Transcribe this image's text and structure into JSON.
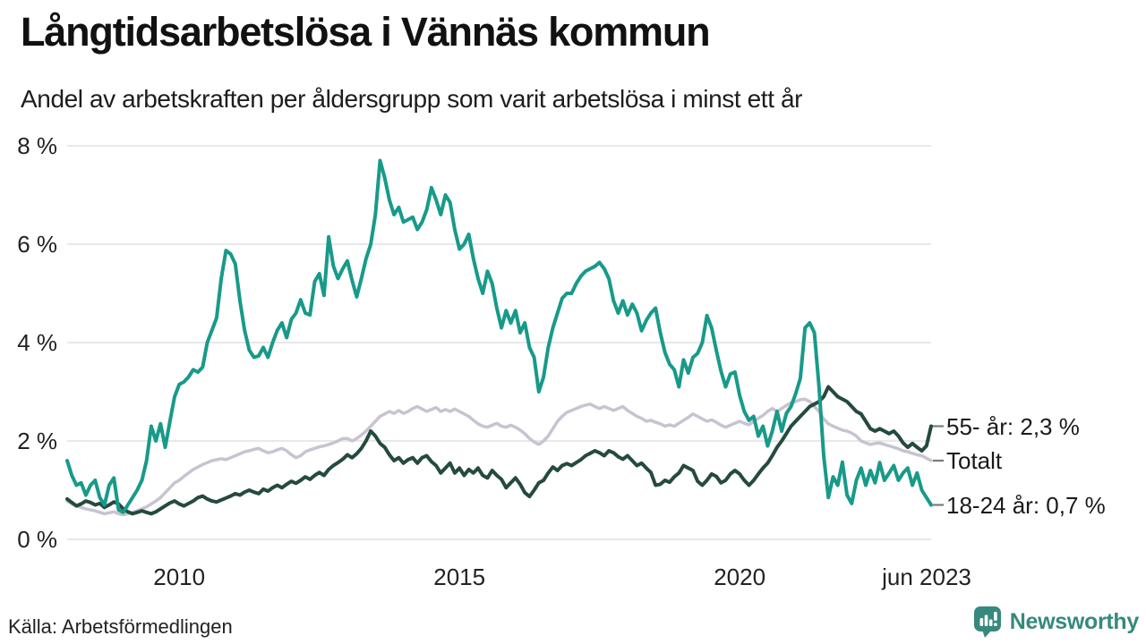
{
  "header": {
    "title": "Långtidsarbetslösa i Vännäs kommun",
    "subtitle": "Andel av arbetskraften per åldersgrupp som varit arbetslösa i minst ett år"
  },
  "chart_data": {
    "type": "line",
    "title": "Långtidsarbetslösa i Vännäs kommun",
    "subtitle": "Andel av arbetskraften per åldersgrupp som varit arbetslösa i minst ett år",
    "x_domain": [
      2008.0,
      2023.4167
    ],
    "x_step": "monthly",
    "ylim": [
      0,
      8
    ],
    "grid": "horizontal",
    "gridline_color": "#e1e1e1",
    "y_ticks": [
      {
        "value": 8,
        "label": "8 %"
      },
      {
        "value": 6,
        "label": "6 %"
      },
      {
        "value": 4,
        "label": "4 %"
      },
      {
        "value": 2,
        "label": "2 %"
      },
      {
        "value": 0,
        "label": "0 %"
      }
    ],
    "x_ticks": [
      {
        "value": 2010.0,
        "label": "2010"
      },
      {
        "value": 2015.0,
        "label": "2015"
      },
      {
        "value": 2020.0,
        "label": "2020"
      },
      {
        "value": 2023.4167,
        "label": "jun 2023"
      }
    ],
    "legend_position": "right-end-labels",
    "series": [
      {
        "name": "Totalt",
        "end_label": "Totalt",
        "end_value": 1.6,
        "color": "#c6c4d2",
        "values": [
          0.78,
          0.72,
          0.68,
          0.65,
          0.62,
          0.6,
          0.58,
          0.55,
          0.52,
          0.54,
          0.56,
          0.52,
          0.5,
          0.52,
          0.55,
          0.58,
          0.62,
          0.66,
          0.72,
          0.78,
          0.85,
          0.95,
          1.05,
          1.15,
          1.2,
          1.28,
          1.35,
          1.42,
          1.47,
          1.52,
          1.56,
          1.6,
          1.62,
          1.64,
          1.62,
          1.66,
          1.7,
          1.74,
          1.78,
          1.8,
          1.83,
          1.85,
          1.8,
          1.76,
          1.78,
          1.82,
          1.85,
          1.8,
          1.72,
          1.66,
          1.7,
          1.78,
          1.82,
          1.85,
          1.88,
          1.9,
          1.93,
          1.96,
          2.0,
          2.05,
          2.05,
          2.0,
          2.05,
          2.12,
          2.2,
          2.3,
          2.4,
          2.5,
          2.55,
          2.6,
          2.56,
          2.62,
          2.56,
          2.6,
          2.66,
          2.7,
          2.65,
          2.6,
          2.64,
          2.68,
          2.6,
          2.64,
          2.6,
          2.65,
          2.6,
          2.55,
          2.5,
          2.42,
          2.35,
          2.3,
          2.28,
          2.32,
          2.36,
          2.3,
          2.28,
          2.32,
          2.28,
          2.22,
          2.15,
          2.05,
          1.98,
          1.93,
          2.0,
          2.1,
          2.25,
          2.4,
          2.5,
          2.58,
          2.62,
          2.66,
          2.7,
          2.73,
          2.75,
          2.7,
          2.66,
          2.7,
          2.66,
          2.62,
          2.66,
          2.7,
          2.62,
          2.56,
          2.5,
          2.46,
          2.4,
          2.42,
          2.38,
          2.35,
          2.3,
          2.33,
          2.3,
          2.36,
          2.42,
          2.48,
          2.55,
          2.5,
          2.45,
          2.4,
          2.43,
          2.38,
          2.32,
          2.28,
          2.32,
          2.36,
          2.4,
          2.36,
          2.33,
          2.4,
          2.46,
          2.52,
          2.6,
          2.66,
          2.6,
          2.66,
          2.72,
          2.78,
          2.8,
          2.84,
          2.85,
          2.8,
          2.7,
          2.6,
          2.45,
          2.35,
          2.3,
          2.26,
          2.22,
          2.2,
          2.16,
          2.1,
          2.0,
          1.96,
          1.93,
          1.95,
          1.96,
          1.93,
          1.9,
          1.87,
          1.84,
          1.8,
          1.78,
          1.75,
          1.72,
          1.7,
          1.65,
          1.6
        ]
      },
      {
        "name": "55- år",
        "end_label": "55- år: 2,3 %",
        "end_value": 2.3,
        "color": "#254a3e",
        "values": [
          0.82,
          0.75,
          0.68,
          0.72,
          0.78,
          0.75,
          0.7,
          0.73,
          0.65,
          0.7,
          0.76,
          0.72,
          0.62,
          0.56,
          0.52,
          0.55,
          0.58,
          0.55,
          0.52,
          0.56,
          0.62,
          0.68,
          0.74,
          0.78,
          0.72,
          0.68,
          0.73,
          0.78,
          0.85,
          0.88,
          0.82,
          0.78,
          0.76,
          0.8,
          0.84,
          0.88,
          0.93,
          0.9,
          0.96,
          1.0,
          0.96,
          0.93,
          1.02,
          0.98,
          1.05,
          1.1,
          1.05,
          1.12,
          1.18,
          1.14,
          1.2,
          1.27,
          1.22,
          1.3,
          1.36,
          1.3,
          1.42,
          1.5,
          1.56,
          1.63,
          1.72,
          1.66,
          1.74,
          1.85,
          2.0,
          2.2,
          2.1,
          1.95,
          1.87,
          1.72,
          1.6,
          1.66,
          1.55,
          1.62,
          1.66,
          1.55,
          1.66,
          1.7,
          1.58,
          1.5,
          1.35,
          1.45,
          1.55,
          1.35,
          1.45,
          1.3,
          1.42,
          1.35,
          1.45,
          1.3,
          1.25,
          1.4,
          1.3,
          1.22,
          1.05,
          1.15,
          1.25,
          1.12,
          0.95,
          0.87,
          1.0,
          1.15,
          1.2,
          1.35,
          1.47,
          1.4,
          1.5,
          1.54,
          1.5,
          1.56,
          1.62,
          1.7,
          1.75,
          1.8,
          1.76,
          1.7,
          1.8,
          1.76,
          1.68,
          1.63,
          1.7,
          1.6,
          1.5,
          1.55,
          1.45,
          1.36,
          1.1,
          1.12,
          1.2,
          1.16,
          1.27,
          1.35,
          1.5,
          1.45,
          1.4,
          1.18,
          1.1,
          1.2,
          1.33,
          1.28,
          1.15,
          1.2,
          1.33,
          1.4,
          1.33,
          1.2,
          1.1,
          1.2,
          1.33,
          1.45,
          1.55,
          1.7,
          1.87,
          2.0,
          2.15,
          2.3,
          2.4,
          2.5,
          2.6,
          2.7,
          2.75,
          2.8,
          2.9,
          3.1,
          3.0,
          2.9,
          2.85,
          2.8,
          2.7,
          2.6,
          2.55,
          2.4,
          2.25,
          2.2,
          2.25,
          2.2,
          2.15,
          2.2,
          2.1,
          1.96,
          1.87,
          1.95,
          1.87,
          1.8,
          1.9,
          2.3
        ]
      },
      {
        "name": "18-24 år",
        "end_label": "18-24 år: 0,7 %",
        "end_value": 0.7,
        "color": "#189a8a",
        "values": [
          1.6,
          1.3,
          1.1,
          1.15,
          0.9,
          1.1,
          1.2,
          0.85,
          0.7,
          1.1,
          1.25,
          0.6,
          0.55,
          0.7,
          0.85,
          1.0,
          1.2,
          1.6,
          2.3,
          2.0,
          2.35,
          1.87,
          2.4,
          2.9,
          3.15,
          3.2,
          3.3,
          3.45,
          3.4,
          3.5,
          4.0,
          4.25,
          4.5,
          5.3,
          5.87,
          5.8,
          5.6,
          4.85,
          4.25,
          3.85,
          3.7,
          3.73,
          3.9,
          3.7,
          4.0,
          4.25,
          4.4,
          4.1,
          4.47,
          4.6,
          4.87,
          4.6,
          4.56,
          5.24,
          5.4,
          4.96,
          6.15,
          5.56,
          5.3,
          5.5,
          5.66,
          5.27,
          4.93,
          5.3,
          5.7,
          6.0,
          6.6,
          7.7,
          7.35,
          6.9,
          6.6,
          6.75,
          6.45,
          6.5,
          6.55,
          6.3,
          6.45,
          6.7,
          7.15,
          6.9,
          6.6,
          7.0,
          6.85,
          6.3,
          5.9,
          6.0,
          6.2,
          5.7,
          5.3,
          5.0,
          5.45,
          5.2,
          4.7,
          4.3,
          4.65,
          4.4,
          4.65,
          4.2,
          4.4,
          3.9,
          3.7,
          3.0,
          3.3,
          3.9,
          4.3,
          4.6,
          4.9,
          5.0,
          5.0,
          5.2,
          5.35,
          5.45,
          5.5,
          5.55,
          5.63,
          5.5,
          5.3,
          4.85,
          4.6,
          4.85,
          4.56,
          4.78,
          4.6,
          4.24,
          4.45,
          4.6,
          4.7,
          4.2,
          3.8,
          3.56,
          3.45,
          3.1,
          3.65,
          3.38,
          3.7,
          3.78,
          4.0,
          4.55,
          4.3,
          3.84,
          3.42,
          3.1,
          3.36,
          3.4,
          2.93,
          2.6,
          2.42,
          2.5,
          2.1,
          2.3,
          1.9,
          2.2,
          2.6,
          2.2,
          2.56,
          2.7,
          2.96,
          3.27,
          4.3,
          4.4,
          4.2,
          3.1,
          1.7,
          0.85,
          1.27,
          1.1,
          1.57,
          0.9,
          0.73,
          1.2,
          1.45,
          1.1,
          1.4,
          1.15,
          1.56,
          1.2,
          1.35,
          1.5,
          1.2,
          1.35,
          1.45,
          1.1,
          1.35,
          1.0,
          0.85,
          0.7
        ]
      }
    ]
  },
  "footer": {
    "source": "Källa: Arbetsförmedlingen",
    "brand": "Newsworthy"
  },
  "colors": {
    "series_18_24": "#189a8a",
    "series_totalt": "#c6c4d2",
    "series_55": "#254a3e",
    "gridline": "#e1e1e1",
    "brand_teal": "#36897c",
    "leader_dash": "#7a7a7a"
  }
}
